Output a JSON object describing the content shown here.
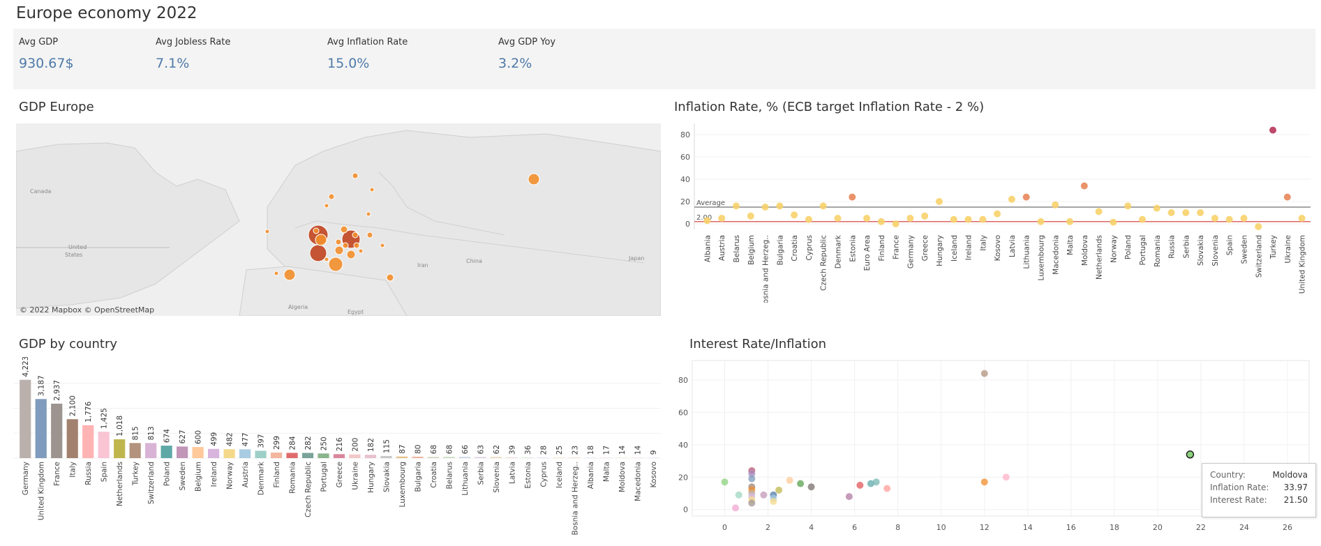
{
  "dashboard": {
    "title": "Europe economy 2022"
  },
  "kpis": [
    {
      "label": "Avg GDP",
      "value": "930.67$"
    },
    {
      "label": "Avg Jobless Rate",
      "value": "7.1%"
    },
    {
      "label": "Avg Inflation Rate",
      "value": "15.0%"
    },
    {
      "label": "Avg GDP Yoy",
      "value": "3.2%"
    }
  ],
  "map": {
    "title": "GDP Europe",
    "attribution": "© 2022 Mapbox  © OpenStreetMap",
    "place_labels": [
      "Canada",
      "United States",
      "Algeria",
      "Egypt",
      "Iran",
      "China",
      "Japan"
    ],
    "bubble_color": "#f28e2b",
    "bubble_dark_color": "#c0441f"
  },
  "chart_data": [
    {
      "type": "scatter",
      "title": "Inflation Rate, % (ECB target Inflation Rate - 2 %)",
      "categories": [
        "Albania",
        "Austria",
        "Belarus",
        "Belgium",
        "Bosnia and Herzeg..",
        "Bulgaria",
        "Croatia",
        "Cyprus",
        "Czech Republic",
        "Denmark",
        "Estonia",
        "Euro Area",
        "Finland",
        "France",
        "Germany",
        "Greece",
        "Hungary",
        "Iceland",
        "Ireland",
        "Italy",
        "Kosovo",
        "Latvia",
        "Lithuania",
        "Luxembourg",
        "Macedonia",
        "Malta",
        "Moldova",
        "Netherlands",
        "Norway",
        "Poland",
        "Portugal",
        "Romania",
        "Russia",
        "Serbia",
        "Slovakia",
        "Slovenia",
        "Spain",
        "Sweden",
        "Switzerland",
        "Turkey",
        "Ukraine",
        "United Kingdom"
      ],
      "values": [
        3.0,
        5.0,
        16.0,
        7.0,
        15.0,
        16.0,
        8.0,
        4.0,
        16.0,
        5.0,
        24.0,
        5.0,
        2.0,
        0.0,
        5.0,
        7.0,
        20.0,
        4.0,
        4.0,
        4.0,
        9.0,
        22.0,
        24.0,
        2.0,
        17.0,
        2.0,
        33.97,
        11.0,
        1.5,
        16.0,
        4.0,
        14.0,
        10.0,
        10.0,
        10.0,
        5.0,
        4.0,
        5.0,
        -2.5,
        84.0,
        24.0,
        5.0
      ],
      "y_ticks": [
        0,
        20,
        40,
        60,
        80
      ],
      "ylim": [
        -5,
        90
      ],
      "reference_lines": [
        {
          "label": "Average",
          "value": 15.0,
          "color": "#888888"
        },
        {
          "label": "2.00",
          "value": 2.0,
          "color": "#e06666"
        }
      ],
      "color_low": "#f7d26a",
      "color_mid": "#e8875a",
      "color_high": "#b8355a"
    },
    {
      "type": "bar",
      "title": "GDP by country",
      "categories": [
        "Germany",
        "United Kingdom",
        "France",
        "Italy",
        "Russia",
        "Spain",
        "Netherlands",
        "Turkey",
        "Switzerland",
        "Poland",
        "Sweden",
        "Belgium",
        "Ireland",
        "Norway",
        "Austria",
        "Denmark",
        "Finland",
        "Romania",
        "Czech Republic",
        "Portugal",
        "Greece",
        "Ukraine",
        "Hungary",
        "Slovakia",
        "Luxembourg",
        "Bulgaria",
        "Croatia",
        "Belarus",
        "Lithuania",
        "Serbia",
        "Slovenia",
        "Latvia",
        "Estonia",
        "Cyprus",
        "Iceland",
        "Bosnia and Herzeg..",
        "Albania",
        "Malta",
        "Moldova",
        "Macedonia",
        "Kosovo"
      ],
      "values": [
        4223,
        3187,
        2937,
        2100,
        1776,
        1425,
        1018,
        815,
        813,
        674,
        627,
        600,
        499,
        482,
        477,
        397,
        299,
        284,
        282,
        250,
        216,
        200,
        182,
        115,
        87,
        80,
        68,
        68,
        66,
        63,
        62,
        39,
        36,
        28,
        25,
        23,
        18,
        17,
        14,
        14,
        9
      ],
      "value_labels": [
        "4,223",
        "3,187",
        "2,937",
        "2,100",
        "1,776",
        "1,425",
        "1,018",
        "815",
        "813",
        "674",
        "627",
        "600",
        "499",
        "482",
        "477",
        "397",
        "299",
        "284",
        "282",
        "250",
        "216",
        "200",
        "182",
        "115",
        "87",
        "80",
        "68",
        "68",
        "66",
        "63",
        "62",
        "39",
        "36",
        "28",
        "25",
        "23",
        "18",
        "17",
        "14",
        "14",
        "9"
      ],
      "ylim": [
        0,
        4700
      ],
      "colors": [
        "#bab0ac",
        "#7f9bbd",
        "#9d948f",
        "#a2826f",
        "#ffb3b3",
        "#f9c5d5",
        "#bfb74e",
        "#b3937d",
        "#d9b3d6",
        "#5fa8a8",
        "#c196b8",
        "#ffc99a",
        "#d7b5dd",
        "#f5d98a",
        "#a9cce3",
        "#9dcfc6",
        "#f4b69e",
        "#e06b6b",
        "#7aa39a",
        "#8ab48c",
        "#d9879d",
        "#f2c8c8",
        "#e8c0d0",
        "#c8c8c8",
        "#e5c08a",
        "#f0b6a0",
        "#d6d6c0",
        "#c9dcc0",
        "#c9d6e6",
        "#ddd0e4",
        "#ead8b8",
        "#f2d4d4",
        "#d8e8d8",
        "#e0dcef",
        "#f2e2c6",
        "#e8d6c8",
        "#dfe6ee",
        "#ecdde8",
        "#e6efd6",
        "#efe3e3",
        "#e3e8ef"
      ]
    },
    {
      "type": "scatter",
      "title": "Interest Rate/Inflation",
      "x_ticks": [
        0,
        2,
        4,
        6,
        8,
        10,
        12,
        14,
        16,
        18,
        20,
        22,
        24,
        26
      ],
      "y_ticks": [
        0,
        20,
        40,
        60,
        80
      ],
      "xlim": [
        -1.5,
        27
      ],
      "ylim": [
        -4,
        92
      ],
      "points": [
        {
          "x": 0.0,
          "y": 17,
          "color": "#8cd17d"
        },
        {
          "x": 0.5,
          "y": 1,
          "color": "#f1a7cf"
        },
        {
          "x": 0.65,
          "y": 9,
          "color": "#9fd6c0"
        },
        {
          "x": 1.25,
          "y": 24,
          "color": "#b55a78"
        },
        {
          "x": 1.25,
          "y": 22,
          "color": "#a78bbf"
        },
        {
          "x": 1.25,
          "y": 19,
          "color": "#7f9bbd"
        },
        {
          "x": 1.25,
          "y": 14,
          "color": "#a2826f"
        },
        {
          "x": 1.25,
          "y": 12,
          "color": "#f28e2b"
        },
        {
          "x": 1.25,
          "y": 10,
          "color": "#bab0ac"
        },
        {
          "x": 1.25,
          "y": 8,
          "color": "#d7b5dd"
        },
        {
          "x": 1.25,
          "y": 6,
          "color": "#f5d98a"
        },
        {
          "x": 1.25,
          "y": 4,
          "color": "#9d948f"
        },
        {
          "x": 1.8,
          "y": 9,
          "color": "#c196b8"
        },
        {
          "x": 2.25,
          "y": 9,
          "color": "#4e79a7"
        },
        {
          "x": 2.25,
          "y": 7,
          "color": "#a9cce3"
        },
        {
          "x": 2.25,
          "y": 5,
          "color": "#f5d98a"
        },
        {
          "x": 2.5,
          "y": 12,
          "color": "#bfb74e"
        },
        {
          "x": 3.0,
          "y": 18,
          "color": "#ffc99a"
        },
        {
          "x": 3.5,
          "y": 16,
          "color": "#59a14f"
        },
        {
          "x": 4.0,
          "y": 14,
          "color": "#79706e"
        },
        {
          "x": 5.75,
          "y": 8,
          "color": "#b07aa1"
        },
        {
          "x": 6.25,
          "y": 15,
          "color": "#e15759"
        },
        {
          "x": 6.75,
          "y": 16,
          "color": "#5fa8a8"
        },
        {
          "x": 7.0,
          "y": 17,
          "color": "#76b7b2"
        },
        {
          "x": 7.5,
          "y": 13,
          "color": "#ff9d9a"
        },
        {
          "x": 12.0,
          "y": 84,
          "color": "#b3937d"
        },
        {
          "x": 12.0,
          "y": 17,
          "color": "#f28e2b"
        },
        {
          "x": 13.0,
          "y": 20,
          "color": "#ffb3c8"
        },
        {
          "x": 21.5,
          "y": 33.97,
          "color": "#8cd17d",
          "highlight": true
        }
      ]
    }
  ],
  "tooltip": {
    "country_label": "Country:",
    "country_value": "Moldova",
    "inflation_label": "Inflation Rate:",
    "inflation_value": "33.97",
    "interest_label": "Interest Rate:",
    "interest_value": "21.50"
  }
}
